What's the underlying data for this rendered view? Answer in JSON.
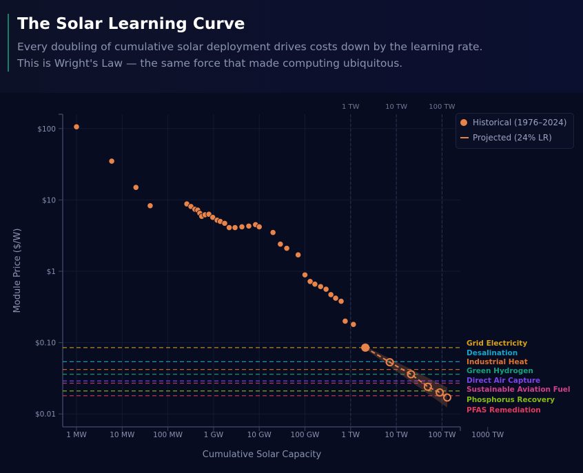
{
  "header": {
    "title": "The Solar Learning Curve",
    "subtitle_line1": "Every doubling of cumulative solar deployment drives costs down by the learning rate.",
    "subtitle_line2": "This is Wright's Law — the same force that made computing ubiquitous."
  },
  "legend": {
    "historical": "Historical (1976–2024)",
    "projected": "Projected (24% LR)"
  },
  "chart_data": {
    "type": "scatter",
    "xlabel": "Cumulative Solar Capacity",
    "ylabel": "Module Price ($/W)",
    "x_scale": "log",
    "y_scale": "log",
    "x_unit": "MW",
    "xlim": [
      0.55,
      3000000000
    ],
    "ylim": [
      0.0055,
      160
    ],
    "grid": true,
    "legend_position": "top-right",
    "x_ticks": [
      {
        "value": 1,
        "label": "1 MW"
      },
      {
        "value": 10,
        "label": "10 MW"
      },
      {
        "value": 100,
        "label": "100 MW"
      },
      {
        "value": 1000,
        "label": "1 GW"
      },
      {
        "value": 10000,
        "label": "10 GW"
      },
      {
        "value": 100000,
        "label": "100 GW"
      },
      {
        "value": 1000000,
        "label": "1 TW"
      },
      {
        "value": 10000000,
        "label": "10 TW"
      },
      {
        "value": 100000000,
        "label": "100 TW"
      },
      {
        "value": 1000000000,
        "label": "1000 TW"
      }
    ],
    "y_ticks": [
      {
        "value": 100,
        "label": "$100"
      },
      {
        "value": 10,
        "label": "$10"
      },
      {
        "value": 1,
        "label": "$1"
      },
      {
        "value": 0.1,
        "label": "$0.10"
      },
      {
        "value": 0.01,
        "label": "$0.01"
      }
    ],
    "top_markers": [
      {
        "value": 1000000,
        "label": "1 TW"
      },
      {
        "value": 10000000,
        "label": "10 TW"
      },
      {
        "value": 100000000,
        "label": "100 TW"
      }
    ],
    "colors": {
      "series": "#e8834a",
      "band": "#e8834a"
    },
    "series": [
      {
        "name": "Historical (1976–2024)",
        "points": [
          [
            1,
            106
          ],
          [
            5.9,
            35
          ],
          [
            20,
            15
          ],
          [
            41,
            8.3
          ],
          [
            260,
            8.8
          ],
          [
            320,
            8.1
          ],
          [
            390,
            7.4
          ],
          [
            450,
            7.2
          ],
          [
            500,
            6.5
          ],
          [
            550,
            5.9
          ],
          [
            650,
            6.2
          ],
          [
            790,
            6.3
          ],
          [
            960,
            5.7
          ],
          [
            1200,
            5.2
          ],
          [
            1400,
            5.0
          ],
          [
            1750,
            4.7
          ],
          [
            2200,
            4.1
          ],
          [
            2950,
            4.1
          ],
          [
            4170,
            4.2
          ],
          [
            5900,
            4.3
          ],
          [
            8300,
            4.5
          ],
          [
            10000,
            4.2
          ],
          [
            20000,
            3.5
          ],
          [
            29000,
            2.4
          ],
          [
            40000,
            2.1
          ],
          [
            71000,
            1.7
          ],
          [
            100000,
            0.89
          ],
          [
            130000,
            0.72
          ],
          [
            165000,
            0.66
          ],
          [
            220000,
            0.61
          ],
          [
            290000,
            0.56
          ],
          [
            370000,
            0.47
          ],
          [
            470000,
            0.42
          ],
          [
            620000,
            0.38
          ],
          [
            760000,
            0.2
          ],
          [
            1150000,
            0.18
          ]
        ],
        "current": [
          2100000,
          0.085
        ]
      },
      {
        "name": "Projected (24% LR)",
        "points": [
          [
            2100000,
            0.085
          ],
          [
            7200000,
            0.053
          ],
          [
            21000000,
            0.036
          ],
          [
            49000000,
            0.024
          ],
          [
            89000000,
            0.02
          ],
          [
            130000000,
            0.017
          ]
        ]
      }
    ],
    "thresholds": [
      {
        "label": "Grid Electricity",
        "value": 0.085,
        "color": "#d9a21e"
      },
      {
        "label": "Desalination",
        "value": 0.054,
        "color": "#18a4c8"
      },
      {
        "label": "Industrial Heat",
        "value": 0.042,
        "color": "#e0732a"
      },
      {
        "label": "Green Hydrogen",
        "value": 0.036,
        "color": "#17a07e"
      },
      {
        "label": "Direct Air Capture",
        "value": 0.029,
        "color": "#7d45e8"
      },
      {
        "label": "Sustainable Aviation Fuel",
        "value": 0.027,
        "color": "#d23f8e"
      },
      {
        "label": "Phosphorus Recovery",
        "value": 0.021,
        "color": "#86b91a"
      },
      {
        "label": "PFAS Remediation",
        "value": 0.018,
        "color": "#e23a5c"
      }
    ]
  }
}
